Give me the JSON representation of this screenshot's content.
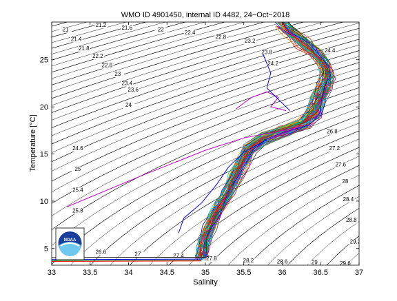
{
  "chart_data": {
    "type": "line",
    "title": "WMO ID 4901450, internal ID 4482, 24−Oct−2018",
    "xlabel": "Salinity",
    "ylabel": "Temperature [°C]",
    "xlim": [
      33,
      37
    ],
    "ylim": [
      3.2,
      29
    ],
    "xticks": [
      "33",
      "33.5",
      "34",
      "34.5",
      "35",
      "35.5",
      "36",
      "36.5",
      "37"
    ],
    "yticks": [
      "5",
      "10",
      "15",
      "20",
      "25"
    ],
    "grid": false,
    "logo": "NOAA",
    "density_contours": {
      "levels": [
        20.8,
        21.2,
        21.6,
        22,
        22.4,
        22.8,
        23.2,
        23.6,
        24,
        24.4,
        24.8,
        25.2,
        25.6,
        26,
        26.4,
        26.8,
        27.2,
        27.6,
        28,
        28.4,
        28.8,
        29.2,
        29.6,
        30,
        30.4
      ],
      "labels": [
        {
          "text": "21",
          "s": 33.18,
          "t": 28.0
        },
        {
          "text": "21.4",
          "s": 33.32,
          "t": 27.0
        },
        {
          "text": "21.8",
          "s": 33.42,
          "t": 26.0
        },
        {
          "text": "22.2",
          "s": 33.6,
          "t": 25.2
        },
        {
          "text": "22.6",
          "s": 33.72,
          "t": 24.2
        },
        {
          "text": "23",
          "s": 33.86,
          "t": 23.3
        },
        {
          "text": "23.4",
          "s": 33.98,
          "t": 22.3
        },
        {
          "text": "23.6",
          "s": 34.06,
          "t": 21.6
        },
        {
          "text": "24",
          "s": 34.0,
          "t": 20.0
        },
        {
          "text": "21.2",
          "s": 33.64,
          "t": 28.5
        },
        {
          "text": "21.6",
          "s": 33.98,
          "t": 28.2
        },
        {
          "text": "22",
          "s": 34.42,
          "t": 28.0
        },
        {
          "text": "22.4",
          "s": 34.8,
          "t": 27.7
        },
        {
          "text": "22.8",
          "s": 35.2,
          "t": 27.2
        },
        {
          "text": "23.2",
          "s": 35.58,
          "t": 26.8
        },
        {
          "text": "23.8",
          "s": 35.8,
          "t": 25.6
        },
        {
          "text": "24.2",
          "s": 35.88,
          "t": 24.4
        },
        {
          "text": "24.4",
          "s": 36.62,
          "t": 25.8
        },
        {
          "text": "24.6",
          "s": 33.34,
          "t": 15.4
        },
        {
          "text": "25",
          "s": 33.34,
          "t": 13.2
        },
        {
          "text": "25.4",
          "s": 33.34,
          "t": 11.0
        },
        {
          "text": "25.8",
          "s": 33.34,
          "t": 8.8
        },
        {
          "text": "26.6",
          "s": 33.64,
          "t": 4.4
        },
        {
          "text": "27",
          "s": 34.12,
          "t": 4.2
        },
        {
          "text": "27.4",
          "s": 34.65,
          "t": 4.0
        },
        {
          "text": "27.8",
          "s": 35.08,
          "t": 3.7
        },
        {
          "text": "28.2",
          "s": 35.56,
          "t": 3.5
        },
        {
          "text": "28.6",
          "s": 36.0,
          "t": 3.4
        },
        {
          "text": "29",
          "s": 36.42,
          "t": 3.3
        },
        {
          "text": "26.8",
          "s": 36.65,
          "t": 17.2
        },
        {
          "text": "27.2",
          "s": 36.68,
          "t": 15.4
        },
        {
          "text": "27.6",
          "s": 36.76,
          "t": 13.7
        },
        {
          "text": "28",
          "s": 36.82,
          "t": 11.9
        },
        {
          "text": "28.4",
          "s": 36.86,
          "t": 10.0
        },
        {
          "text": "28.8",
          "s": 36.9,
          "t": 7.8
        },
        {
          "text": "29.2",
          "s": 36.95,
          "t": 5.5
        },
        {
          "text": "29.6",
          "s": 36.82,
          "t": 3.2
        }
      ]
    },
    "series_colors": [
      "#0000ff",
      "#008000",
      "#ff0000",
      "#00bfbf",
      "#bf00bf",
      "#bfbf00",
      "#404040",
      "#6a3d9a",
      "#ff7f0e",
      "#17becf",
      "#8c564b",
      "#2ca02c",
      "#d62728",
      "#1f77b4"
    ],
    "base_profile": [
      {
        "s": 36.0,
        "t": 28.9
      },
      {
        "s": 36.1,
        "t": 28.0
      },
      {
        "s": 36.28,
        "t": 26.8
      },
      {
        "s": 36.42,
        "t": 25.8
      },
      {
        "s": 36.55,
        "t": 24.6
      },
      {
        "s": 36.6,
        "t": 23.4
      },
      {
        "s": 36.55,
        "t": 22.2
      },
      {
        "s": 36.48,
        "t": 20.8
      },
      {
        "s": 36.42,
        "t": 19.4
      },
      {
        "s": 36.28,
        "t": 18.2
      },
      {
        "s": 36.05,
        "t": 17.5
      },
      {
        "s": 35.78,
        "t": 16.7
      },
      {
        "s": 35.58,
        "t": 15.5
      },
      {
        "s": 35.48,
        "t": 14.1
      },
      {
        "s": 35.4,
        "t": 12.6
      },
      {
        "s": 35.3,
        "t": 11.0
      },
      {
        "s": 35.2,
        "t": 9.6
      },
      {
        "s": 35.12,
        "t": 8.4
      },
      {
        "s": 35.06,
        "t": 7.2
      },
      {
        "s": 35.0,
        "t": 6.0
      },
      {
        "s": 34.97,
        "t": 4.8
      },
      {
        "s": 34.95,
        "t": 4.0
      }
    ],
    "series": [
      {
        "color": "#bf00bf",
        "points": [
          {
            "s": 33.2,
            "t": 9.4
          },
          {
            "s": 34.2,
            "t": 12.8
          },
          {
            "s": 35.0,
            "t": 15.4
          },
          {
            "s": 35.5,
            "t": 16.7
          },
          {
            "s": 35.95,
            "t": 17.4
          },
          {
            "s": 36.2,
            "t": 17.8
          }
        ]
      },
      {
        "color": "#bf00bf",
        "points": [
          {
            "s": 35.4,
            "t": 19.8
          },
          {
            "s": 35.6,
            "t": 21.0
          },
          {
            "s": 35.8,
            "t": 21.6
          },
          {
            "s": 35.95,
            "t": 21.0
          },
          {
            "s": 35.85,
            "t": 20.0
          },
          {
            "s": 36.05,
            "t": 19.6
          }
        ]
      },
      {
        "color": "#0000ff",
        "points": [
          {
            "s": 35.75,
            "t": 25.6
          },
          {
            "s": 35.85,
            "t": 23.6
          },
          {
            "s": 35.8,
            "t": 22.0
          },
          {
            "s": 35.95,
            "t": 20.8
          },
          {
            "s": 36.1,
            "t": 19.6
          }
        ]
      },
      {
        "color": "#0000ff",
        "points": [
          {
            "s": 34.65,
            "t": 6.6
          },
          {
            "s": 34.72,
            "t": 8.2
          },
          {
            "s": 34.95,
            "t": 9.8
          },
          {
            "s": 35.15,
            "t": 11.8
          },
          {
            "s": 35.3,
            "t": 13.6
          },
          {
            "s": 35.5,
            "t": 15.2
          },
          {
            "s": 35.8,
            "t": 16.5
          }
        ]
      },
      {
        "color": "#000000",
        "points": [
          {
            "s": 33.0,
            "t": 4.0
          },
          {
            "s": 35.0,
            "t": 4.05
          },
          {
            "s": 35.05,
            "t": 4.2
          }
        ]
      },
      {
        "color": "#ff0000",
        "points": [
          {
            "s": 33.0,
            "t": 3.6
          },
          {
            "s": 34.95,
            "t": 3.65
          }
        ]
      },
      {
        "color": "#0000ff",
        "points": [
          {
            "s": 33.0,
            "t": 3.8
          },
          {
            "s": 34.96,
            "t": 3.85
          }
        ]
      },
      {
        "color": "#008000",
        "points": [
          {
            "s": 33.0,
            "t": 3.7
          },
          {
            "s": 34.95,
            "t": 3.75
          }
        ]
      }
    ]
  }
}
